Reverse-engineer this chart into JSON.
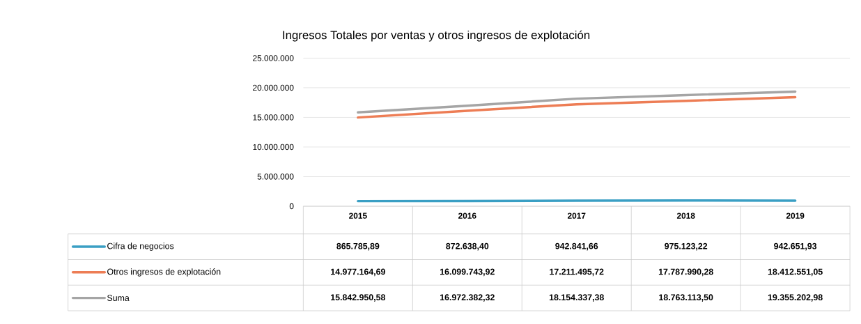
{
  "chart_data": {
    "type": "line",
    "title": "Ingresos Totales por ventas y otros ingresos de explotación",
    "categories": [
      "2015",
      "2016",
      "2017",
      "2018",
      "2019"
    ],
    "series": [
      {
        "name": "Cifra de negocios",
        "color": "#3a9fc4",
        "values": [
          865785.89,
          872638.4,
          942841.66,
          975123.22,
          942651.93
        ],
        "value_labels": [
          "865.785,89",
          "872.638,40",
          "942.841,66",
          "975.123,22",
          "942.651,93"
        ]
      },
      {
        "name": "Otros ingresos de explotación",
        "color": "#ed7d55",
        "values": [
          14977164.69,
          16099743.92,
          17211495.72,
          17787990.28,
          18412551.05
        ],
        "value_labels": [
          "14.977.164,69",
          "16.099.743,92",
          "17.211.495,72",
          "17.787.990,28",
          "18.412.551,05"
        ]
      },
      {
        "name": "Suma",
        "color": "#a5a5a5",
        "values": [
          15842950.58,
          16972382.32,
          18154337.38,
          18763113.5,
          19355202.98
        ],
        "value_labels": [
          "15.842.950,58",
          "16.972.382,32",
          "18.154.337,38",
          "18.763.113,50",
          "19.355.202,98"
        ]
      }
    ],
    "ylim": [
      0,
      25000000
    ],
    "yticks": [
      0,
      {
        "value": 5000000,
        "label": "5.000.000"
      },
      {
        "value": 10000000,
        "label": "10.000.000"
      },
      {
        "value": 15000000,
        "label": "15.000.000"
      },
      {
        "value": 20000000,
        "label": "20.000.000"
      },
      {
        "value": 25000000,
        "label": "25.000.000"
      }
    ],
    "grid": "y",
    "legend": "bottom",
    "marker": "none",
    "line_style": "solid"
  }
}
